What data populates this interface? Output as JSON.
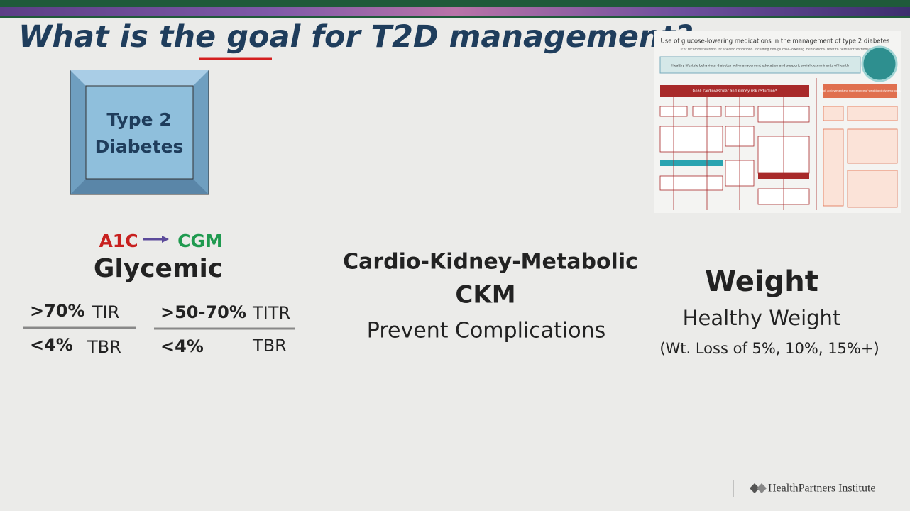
{
  "header": {
    "title_parts": [
      "What is the ",
      "goal",
      " for T2D management?"
    ]
  },
  "box": {
    "lines": [
      "Type 2",
      "Diabetes"
    ]
  },
  "glycemic": {
    "from": "A1C",
    "to": "CGM",
    "title": "Glycemic",
    "targets": [
      {
        "above": ">70%",
        "above_label": "TIR",
        "below": "<4%",
        "below_label": "TBR"
      },
      {
        "above": ">50-70%",
        "above_label": "TITR",
        "below": "<4%",
        "below_label": "TBR"
      }
    ]
  },
  "ckm": {
    "title": "Cardio-Kidney-Metabolic",
    "abbr": "CKM",
    "subtitle": "Prevent Complications"
  },
  "weight": {
    "title": "Weight",
    "subtitle": "Healthy Weight",
    "note": "(Wt. Loss of 5%, 10%, 15%+)"
  },
  "figure": {
    "title": "Use of glucose-lowering medications in the management of type 2 diabetes",
    "subtitle": "(For recommendations for specific conditions, including non-glucose-lowering medications, refer to pertinent sections)",
    "lifestyle": "Healthy lifestyle behaviors; diabetes self-management education and support; social determinants of health",
    "goal_left": "Goal: cardiovascular and kidney risk reduction*",
    "goal_right": "Goal: achievement and maintenance of weight and glycemic goals"
  },
  "footer": {
    "logo": "HealthPartners Institute"
  }
}
